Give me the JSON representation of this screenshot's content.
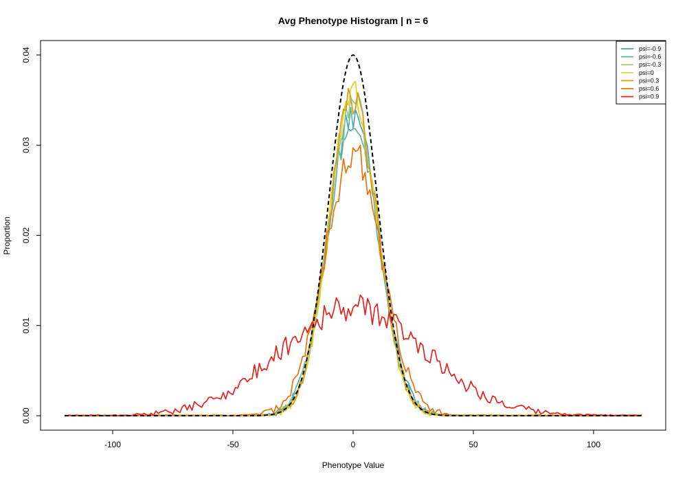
{
  "chart_data": {
    "type": "line",
    "title": "Avg Phenotype Histogram | n = 6",
    "xlabel": "Phenotype Value",
    "ylabel": "Proportion",
    "xlim": [
      -120,
      120
    ],
    "ylim": [
      0,
      0.04
    ],
    "x_ticks": [
      -100,
      -50,
      0,
      50,
      100
    ],
    "y_ticks": [
      0.0,
      0.01,
      0.02,
      0.03,
      0.04
    ],
    "x_tick_labels": [
      "-100",
      "-50",
      "0",
      "50",
      "100"
    ],
    "y_tick_labels": [
      "0.00",
      "0.01",
      "0.02",
      "0.03",
      "0.04"
    ],
    "grid": false,
    "legend_position": "top-right",
    "series": [
      {
        "name": "psi=-0.9",
        "color": "#3fa3c4",
        "kind": "noisy",
        "sd": 10.5,
        "scale": 0.0335,
        "noise": 0.0018,
        "seed": 11
      },
      {
        "name": "psi=-0.6",
        "color": "#5fb0a0",
        "kind": "noisy",
        "sd": 10.5,
        "scale": 0.0335,
        "noise": 0.0018,
        "seed": 23
      },
      {
        "name": "psi=-0.3",
        "color": "#8fcc7f",
        "kind": "noisy",
        "sd": 10.3,
        "scale": 0.0345,
        "noise": 0.002,
        "seed": 37
      },
      {
        "name": "psi=0",
        "color": "#e8cf24",
        "kind": "noisy",
        "sd": 10.0,
        "scale": 0.036,
        "noise": 0.002,
        "seed": 41
      },
      {
        "name": "psi=0.3",
        "color": "#d99a12",
        "kind": "noisy",
        "sd": 10.2,
        "scale": 0.035,
        "noise": 0.002,
        "seed": 53
      },
      {
        "name": "psi=0.6",
        "color": "#e8720c",
        "kind": "noisy",
        "sd": 12.0,
        "scale": 0.029,
        "noise": 0.002,
        "seed": 67
      },
      {
        "name": "psi=0.9",
        "color": "#e8201e",
        "kind": "noisy",
        "sd": 30.0,
        "scale": 0.012,
        "noise": 0.0015,
        "seed": 79
      },
      {
        "name": "",
        "color": "#000000",
        "kind": "normal",
        "sd": 10.0,
        "scale": 0.04,
        "dashed": true
      }
    ]
  }
}
